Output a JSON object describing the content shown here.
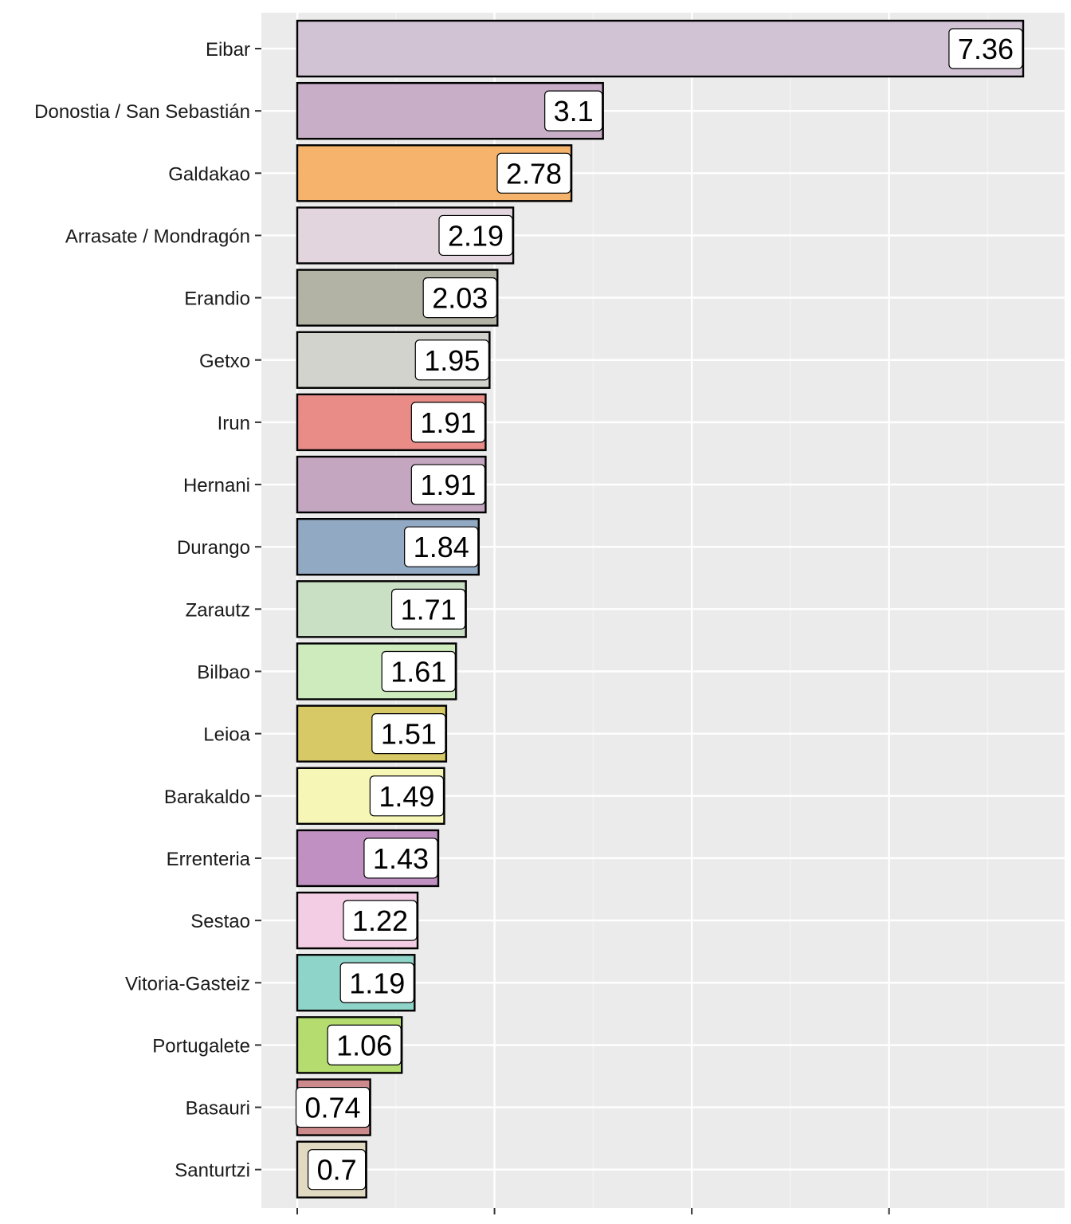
{
  "chart_data": {
    "type": "bar",
    "orientation": "horizontal",
    "title": "",
    "xlabel": "",
    "ylabel": "",
    "xlim": [
      0,
      7.74
    ],
    "x_ticks": [
      0,
      2,
      4,
      6
    ],
    "x_tick_labels_visible": false,
    "grid": true,
    "categories": [
      "Eibar",
      "Donostia / San Sebastián",
      "Galdakao",
      "Arrasate / Mondragón",
      "Erandio",
      "Getxo",
      "Irun",
      "Hernani",
      "Durango",
      "Zarautz",
      "Bilbao",
      "Leioa",
      "Barakaldo",
      "Errenteria",
      "Sestao",
      "Vitoria-Gasteiz",
      "Portugalete",
      "Basauri",
      "Santurtzi"
    ],
    "values": [
      7.36,
      3.1,
      2.78,
      2.19,
      2.03,
      1.95,
      1.91,
      1.91,
      1.84,
      1.71,
      1.61,
      1.51,
      1.49,
      1.43,
      1.22,
      1.19,
      1.06,
      0.74,
      0.7
    ],
    "data_labels": [
      "7.36",
      "3.1",
      "2.78",
      "2.19",
      "2.03",
      "1.95",
      "1.91",
      "1.91",
      "1.84",
      "1.71",
      "1.61",
      "1.51",
      "1.49",
      "1.43",
      "1.22",
      "1.19",
      "1.06",
      "0.74",
      "0.7"
    ],
    "colors": [
      "#d1c3d4",
      "#c9aec8",
      "#f5b36b",
      "#e2d5de",
      "#b2b2a5",
      "#d3d3ce",
      "#e98c87",
      "#c4a6c1",
      "#92a9c4",
      "#c9e0c5",
      "#cdebbc",
      "#d7c965",
      "#f6f6b6",
      "#c190c3",
      "#f2cde3",
      "#8ed4c8",
      "#b5dc6f",
      "#cd8a8c",
      "#e1d9c2"
    ]
  }
}
